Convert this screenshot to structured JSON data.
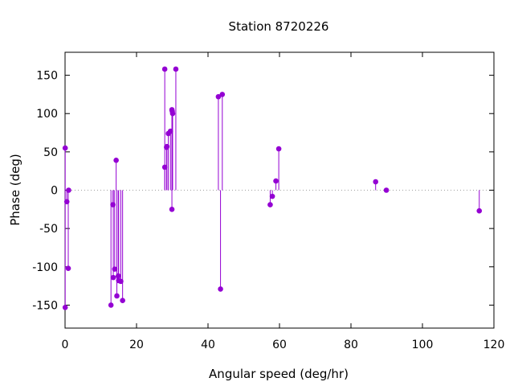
{
  "chart_data": {
    "type": "stem",
    "title": "Station 8720226",
    "xlabel": "Angular speed (deg/hr)",
    "ylabel": "Phase (deg)",
    "xlim": [
      0,
      120
    ],
    "ylim": [
      -180,
      180
    ],
    "xticks": [
      0,
      20,
      40,
      60,
      80,
      100,
      120
    ],
    "yticks": [
      -150,
      -100,
      -50,
      0,
      50,
      100,
      150
    ],
    "zero_line": "dotted",
    "grid": false,
    "series_color": "#9400d3",
    "points": [
      {
        "x": 0.04,
        "y": 55
      },
      {
        "x": 0.04,
        "y": -153
      },
      {
        "x": 0.5,
        "y": -15
      },
      {
        "x": 0.9,
        "y": -102
      },
      {
        "x": 1.0,
        "y": 0
      },
      {
        "x": 12.85,
        "y": -150
      },
      {
        "x": 13.4,
        "y": -19
      },
      {
        "x": 13.5,
        "y": -114
      },
      {
        "x": 13.9,
        "y": -103
      },
      {
        "x": 14.3,
        "y": 39
      },
      {
        "x": 14.5,
        "y": -138
      },
      {
        "x": 14.9,
        "y": -112
      },
      {
        "x": 15.0,
        "y": -118
      },
      {
        "x": 15.6,
        "y": -119
      },
      {
        "x": 16.1,
        "y": -144
      },
      {
        "x": 27.9,
        "y": 158
      },
      {
        "x": 27.9,
        "y": 30
      },
      {
        "x": 28.4,
        "y": 56
      },
      {
        "x": 28.5,
        "y": 57
      },
      {
        "x": 28.9,
        "y": 74
      },
      {
        "x": 29.5,
        "y": 77
      },
      {
        "x": 29.9,
        "y": 105
      },
      {
        "x": 29.9,
        "y": -25
      },
      {
        "x": 30.0,
        "y": 103
      },
      {
        "x": 30.1,
        "y": 100
      },
      {
        "x": 31.0,
        "y": 158
      },
      {
        "x": 42.9,
        "y": 122
      },
      {
        "x": 43.5,
        "y": -129
      },
      {
        "x": 44.0,
        "y": 125
      },
      {
        "x": 57.4,
        "y": -19
      },
      {
        "x": 58.0,
        "y": -8
      },
      {
        "x": 59.0,
        "y": 12
      },
      {
        "x": 59.8,
        "y": 54
      },
      {
        "x": 86.9,
        "y": 11
      },
      {
        "x": 89.9,
        "y": 0
      },
      {
        "x": 115.9,
        "y": -27
      }
    ]
  }
}
